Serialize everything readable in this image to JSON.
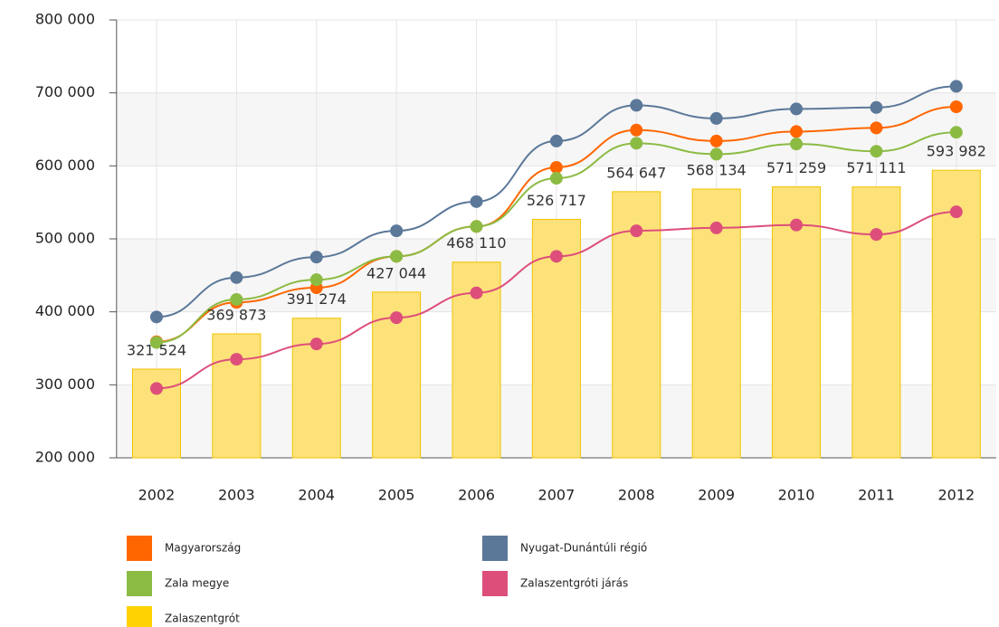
{
  "chart_data": {
    "type": "combo",
    "categories": [
      "2002",
      "2003",
      "2004",
      "2005",
      "2006",
      "2007",
      "2008",
      "2009",
      "2010",
      "2011",
      "2012"
    ],
    "ylim": [
      200000,
      800000
    ],
    "yticks": [
      {
        "value": 200000,
        "label": "200 000"
      },
      {
        "value": 300000,
        "label": "300 000"
      },
      {
        "value": 400000,
        "label": "400 000"
      },
      {
        "value": 500000,
        "label": "500 000"
      },
      {
        "value": 600000,
        "label": "600 000"
      },
      {
        "value": 700000,
        "label": "700 000"
      },
      {
        "value": 800000,
        "label": "800 000"
      }
    ],
    "grid": true,
    "legend": "bottom",
    "series": [
      {
        "name": "Magyarország",
        "type": "line",
        "color": "#ff6600",
        "values": [
          359000,
          413000,
          433000,
          476000,
          517000,
          598000,
          649000,
          634000,
          647000,
          652000,
          681000
        ]
      },
      {
        "name": "Nyugat-Dunántúli régió",
        "type": "line",
        "color": "#5b7899",
        "values": [
          393000,
          447000,
          475000,
          511000,
          551000,
          634000,
          683000,
          665000,
          678000,
          680000,
          709000
        ]
      },
      {
        "name": "Zala megye",
        "type": "line",
        "color": "#8cbb44",
        "values": [
          358000,
          417000,
          444000,
          476000,
          517000,
          583000,
          631000,
          616000,
          630000,
          620000,
          646000
        ]
      },
      {
        "name": "Zalaszentgróti járás",
        "type": "line",
        "color": "#dd4f7a",
        "values": [
          295000,
          335000,
          356000,
          392000,
          426000,
          476000,
          511000,
          515000,
          519000,
          506000,
          537000
        ]
      },
      {
        "name": "Zalaszentgrót",
        "type": "bar",
        "color": "#fde27a",
        "values": [
          321524,
          369873,
          391274,
          427044,
          468110,
          526717,
          564647,
          568134,
          571259,
          571111,
          593982
        ],
        "value_labels": [
          "321 524",
          "369 873",
          "391 274",
          "427 044",
          "468 110",
          "526 717",
          "564 647",
          "568 134",
          "571 259",
          "571 111",
          "593 982"
        ]
      }
    ]
  }
}
